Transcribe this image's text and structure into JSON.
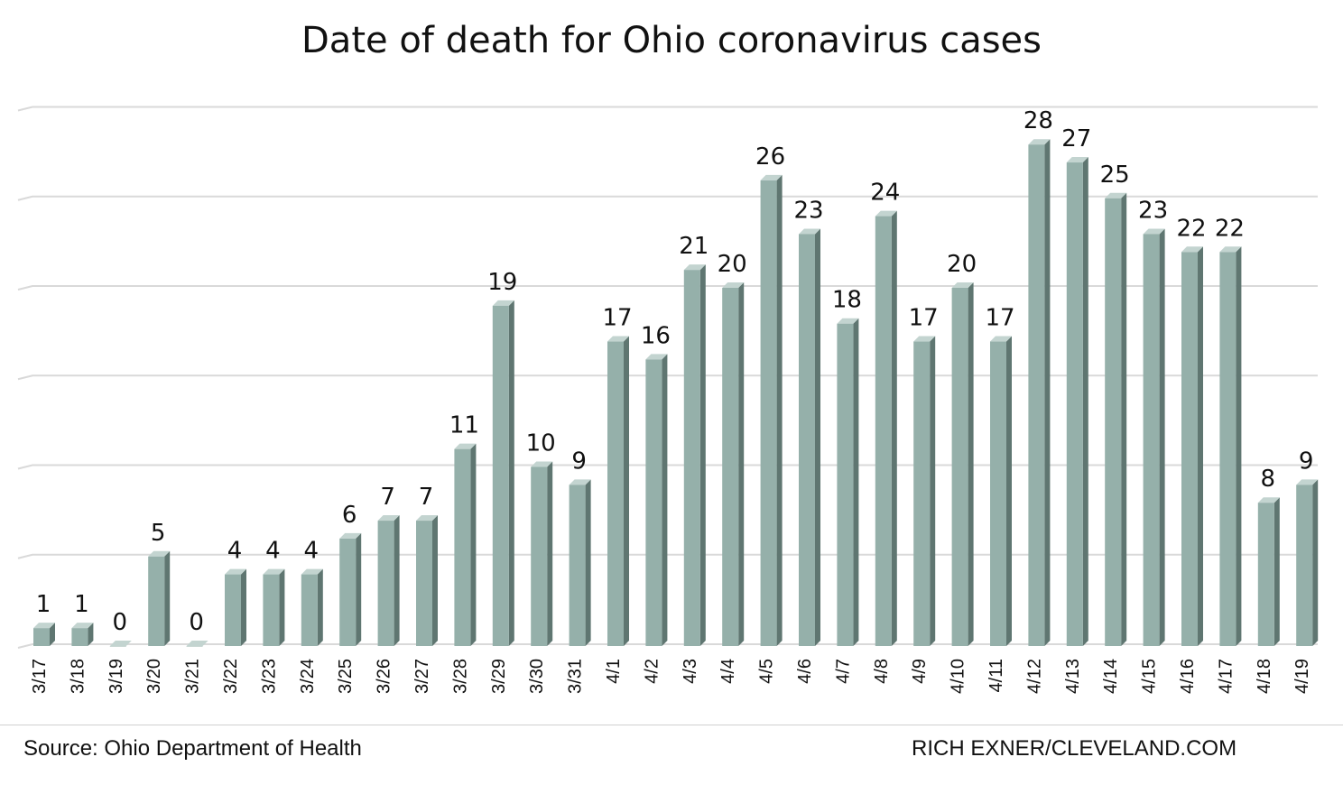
{
  "title": "Date of death for Ohio coronavirus cases",
  "source": "Source: Ohio Department of Health",
  "credit": "RICH EXNER/CLEVELAND.COM",
  "colors": {
    "bar_front": "#95b0aa",
    "bar_side": "#5f7671",
    "bar_top": "#c3d4d0",
    "grid": "#d9d9d9",
    "text": "#111111"
  },
  "chart_data": {
    "type": "bar",
    "title": "Date of death for Ohio coronavirus cases",
    "xlabel": "",
    "ylabel": "",
    "ylim": [
      0,
      30
    ],
    "grid": true,
    "legend": "none",
    "categories": [
      "3/17",
      "3/18",
      "3/19",
      "3/20",
      "3/21",
      "3/22",
      "3/23",
      "3/24",
      "3/25",
      "3/26",
      "3/27",
      "3/28",
      "3/29",
      "3/30",
      "3/31",
      "4/1",
      "4/2",
      "4/3",
      "4/4",
      "4/5",
      "4/6",
      "4/7",
      "4/8",
      "4/9",
      "4/10",
      "4/11",
      "4/12",
      "4/13",
      "4/14",
      "4/15",
      "4/16",
      "4/17",
      "4/18",
      "4/19"
    ],
    "values": [
      1,
      1,
      0,
      5,
      0,
      4,
      4,
      4,
      6,
      7,
      7,
      11,
      19,
      10,
      9,
      17,
      16,
      21,
      20,
      26,
      23,
      18,
      24,
      17,
      20,
      17,
      28,
      27,
      25,
      23,
      22,
      22,
      8,
      9
    ],
    "data_labels": [
      "1",
      "1",
      "0",
      "5",
      "0",
      "4",
      "4",
      "4",
      "6",
      "7",
      "7",
      "11",
      "19",
      "10",
      "9",
      "17",
      "16",
      "21",
      "20",
      "26",
      "23",
      "18",
      "24",
      "17",
      "20",
      "17",
      "28",
      "27",
      "25",
      "23",
      "22",
      "22",
      "8",
      "9"
    ]
  }
}
